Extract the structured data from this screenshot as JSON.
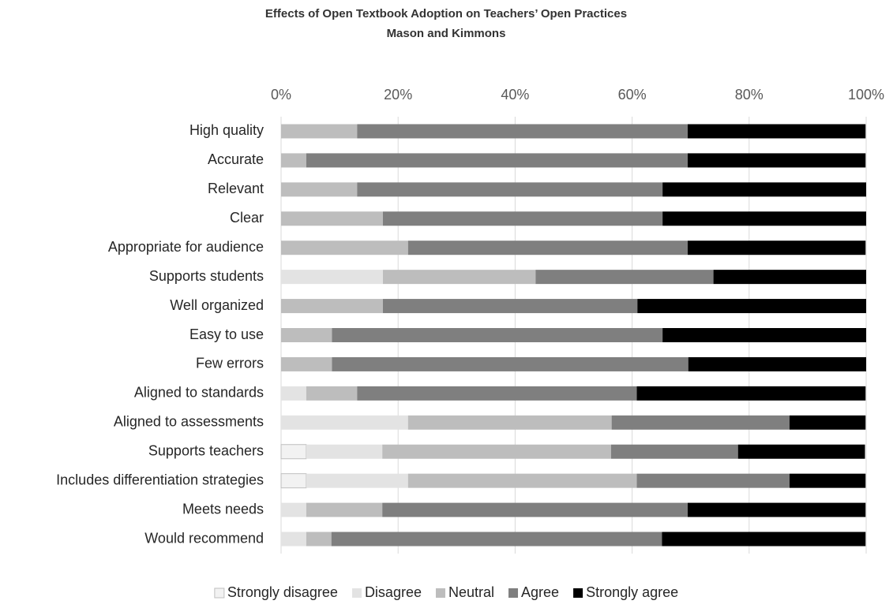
{
  "chart_data": {
    "type": "stacked_bar_horizontal_percent",
    "title": "Effects of Open Textbook Adoption on Teachers’ Open Practices",
    "subtitle": "Mason and Kimmons",
    "categories": [
      "High quality",
      "Accurate",
      "Relevant",
      "Clear",
      "Appropriate for audience",
      "Supports students",
      "Well organized",
      "Easy to use",
      "Few errors",
      "Aligned to standards",
      "Aligned to assessments",
      "Supports teachers",
      "Includes differentiation strategies",
      "Meets needs",
      "Would recommend"
    ],
    "series": [
      {
        "name": "Strongly disagree",
        "color": "#f2f2f2",
        "values": [
          0,
          0,
          0,
          0,
          0,
          0,
          0,
          0,
          0,
          0,
          0,
          4.3,
          4.3,
          0,
          0
        ]
      },
      {
        "name": "Disagree",
        "color": "#e3e3e3",
        "values": [
          0,
          0,
          0,
          0,
          0,
          17.4,
          0,
          0,
          0,
          4.3,
          21.7,
          13.0,
          17.4,
          4.3,
          4.3
        ]
      },
      {
        "name": "Neutral",
        "color": "#bdbdbd",
        "values": [
          13.0,
          4.3,
          13.0,
          17.4,
          21.7,
          26.1,
          17.4,
          8.7,
          8.7,
          8.7,
          34.8,
          39.1,
          39.1,
          13.0,
          4.3
        ]
      },
      {
        "name": "Agree",
        "color": "#7f7f7f",
        "values": [
          56.5,
          65.2,
          52.2,
          47.8,
          47.8,
          30.4,
          43.5,
          56.5,
          60.9,
          47.8,
          30.4,
          21.7,
          26.1,
          52.2,
          56.5
        ]
      },
      {
        "name": "Strongly agree",
        "color": "#000000",
        "values": [
          30.4,
          30.4,
          34.8,
          34.8,
          30.4,
          26.1,
          39.1,
          34.8,
          30.4,
          39.1,
          13.0,
          21.7,
          13.0,
          30.4,
          34.8
        ]
      }
    ],
    "xlim": [
      0,
      100
    ],
    "xticks": [
      {
        "value": 0,
        "label": "0%"
      },
      {
        "value": 20,
        "label": "20%"
      },
      {
        "value": 40,
        "label": "40%"
      },
      {
        "value": 60,
        "label": "60%"
      },
      {
        "value": 80,
        "label": "80%"
      },
      {
        "value": 100,
        "label": "100%"
      }
    ],
    "grid": true,
    "legend": "bottom"
  }
}
